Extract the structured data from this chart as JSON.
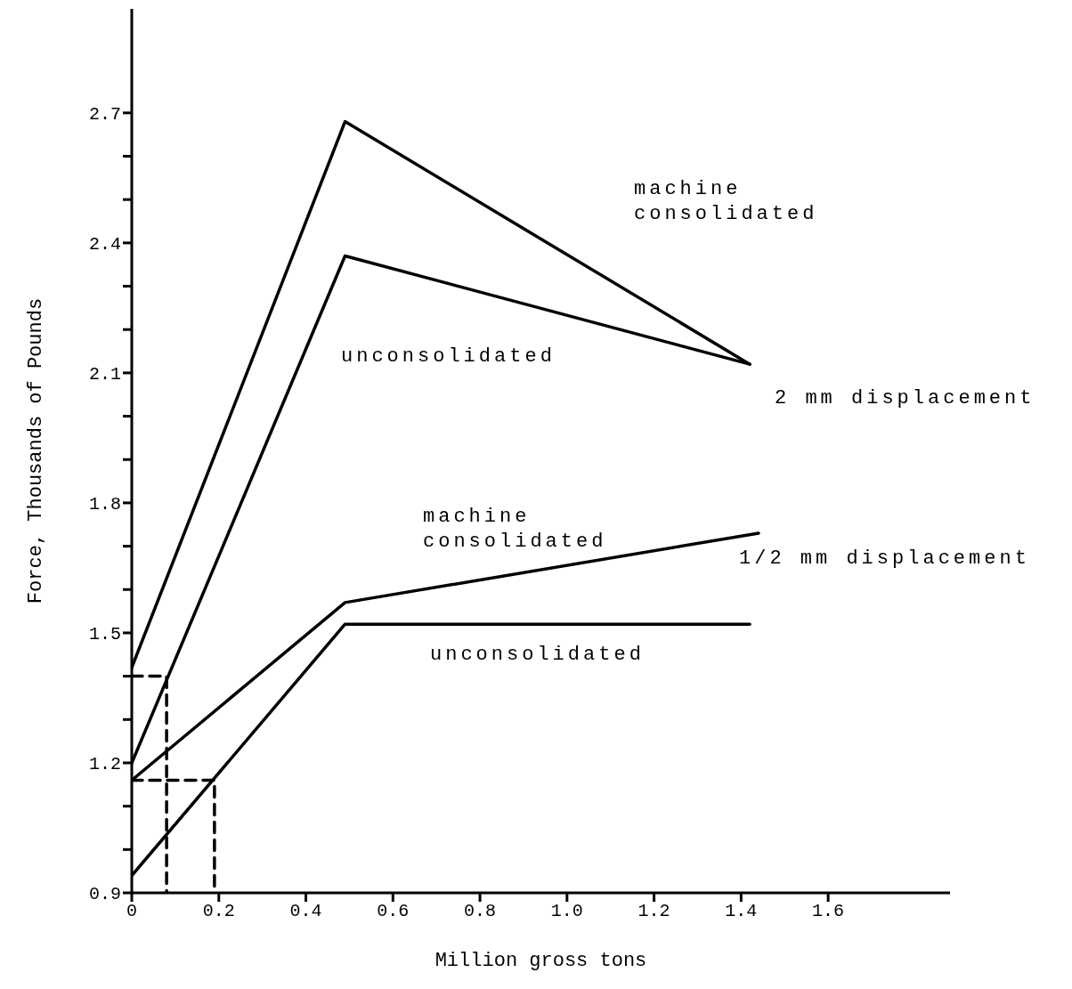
{
  "chart_data": {
    "type": "line",
    "xlabel": "Million gross tons",
    "ylabel": "Force, Thousands of Pounds",
    "xlim": [
      0,
      1.88
    ],
    "ylim": [
      0.9,
      2.94
    ],
    "xticks": [
      0,
      0.2,
      0.4,
      0.6,
      0.8,
      {
        "value": 1,
        "label": "1.0"
      },
      1.2,
      1.4,
      1.6
    ],
    "yticks": [
      0.9,
      {
        "value": 1,
        "label": null
      },
      {
        "value": 1.1,
        "label": null
      },
      1.2,
      {
        "value": 1.3,
        "label": null
      },
      {
        "value": 1.4,
        "label": null
      },
      1.5,
      {
        "value": 1.6,
        "label": null
      },
      {
        "value": 1.7,
        "label": null
      },
      1.8,
      {
        "value": 1.9,
        "label": null
      },
      {
        "value": 2,
        "label": null
      },
      2.1,
      {
        "value": 2.2,
        "label": null
      },
      {
        "value": 2.3,
        "label": null
      },
      2.4,
      {
        "value": 2.5,
        "label": null
      },
      {
        "value": 2.6,
        "label": null
      },
      2.7
    ],
    "grid": false,
    "marker": "none",
    "series": [
      {
        "color": "#000000",
        "line_style": "solid",
        "x": [
          0,
          0.49,
          1.42
        ],
        "values": [
          1.42,
          2.68,
          2.12
        ]
      },
      {
        "color": "#000000",
        "line_style": "solid",
        "x": [
          0,
          0.49,
          1.42
        ],
        "values": [
          1.2,
          2.37,
          2.12
        ]
      },
      {
        "color": "#000000",
        "line_style": "solid",
        "x": [
          0,
          0.49,
          1.44
        ],
        "values": [
          1.16,
          1.57,
          1.73
        ]
      },
      {
        "color": "#000000",
        "line_style": "solid",
        "x": [
          0,
          0.49,
          1.42
        ],
        "values": [
          0.94,
          1.52,
          1.52
        ]
      },
      {
        "color": "#000000",
        "line_style": "dashed",
        "x": [
          0,
          0.08,
          0.08
        ],
        "values": [
          1.4,
          1.4,
          0.9
        ]
      },
      {
        "color": "#000000",
        "line_style": "dashed",
        "x": [
          0,
          0.19,
          0.19
        ],
        "values": [
          1.16,
          1.16,
          0.9
        ]
      }
    ],
    "annotations": [
      "machine\nconsolidated",
      "unconsolidated",
      "2 mm displacement",
      "machine\nconsolidated",
      "1/2 mm displacement",
      "unconsolidated"
    ]
  }
}
